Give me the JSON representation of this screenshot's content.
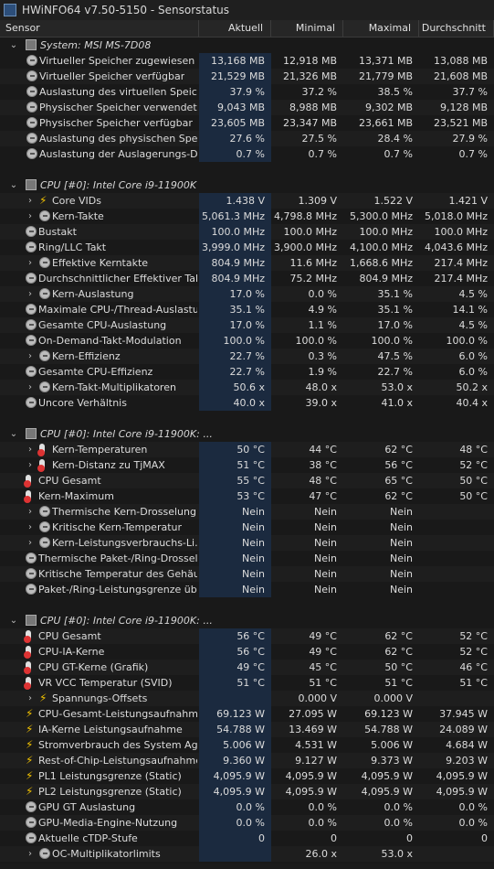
{
  "window": {
    "title": "HWiNFO64 v7.50-5150 - Sensorstatus"
  },
  "columns": {
    "sensor": "Sensor",
    "current": "Aktuell",
    "min": "Minimal",
    "max": "Maximal",
    "avg": "Durchschnitt"
  },
  "rows": [
    {
      "kind": "group",
      "label": "System: MSI MS-7D08",
      "expander": "⌄"
    },
    {
      "kind": "item",
      "label": "Virtueller Speicher zugewiesen",
      "icon": "gauge-icon",
      "indent": 1,
      "v": [
        "13,168 MB",
        "12,918 MB",
        "13,371 MB",
        "13,088 MB"
      ]
    },
    {
      "kind": "item",
      "label": "Virtueller Speicher verfügbar",
      "icon": "gauge-icon",
      "indent": 1,
      "v": [
        "21,529 MB",
        "21,326 MB",
        "21,779 MB",
        "21,608 MB"
      ]
    },
    {
      "kind": "item",
      "label": "Auslastung des virtuellen Speichers",
      "icon": "gauge-icon",
      "indent": 1,
      "v": [
        "37.9 %",
        "37.2 %",
        "38.5 %",
        "37.7 %"
      ]
    },
    {
      "kind": "item",
      "label": "Physischer Speicher verwendet",
      "icon": "gauge-icon",
      "indent": 1,
      "v": [
        "9,043 MB",
        "8,988 MB",
        "9,302 MB",
        "9,128 MB"
      ]
    },
    {
      "kind": "item",
      "label": "Physischer Speicher verfügbar",
      "icon": "gauge-icon",
      "indent": 1,
      "v": [
        "23,605 MB",
        "23,347 MB",
        "23,661 MB",
        "23,521 MB"
      ]
    },
    {
      "kind": "item",
      "label": "Auslastung des physischen Speic...",
      "icon": "gauge-icon",
      "indent": 1,
      "v": [
        "27.6 %",
        "27.5 %",
        "28.4 %",
        "27.9 %"
      ]
    },
    {
      "kind": "item",
      "label": "Auslastung der Auslagerungs-Datei",
      "icon": "gauge-icon",
      "indent": 1,
      "v": [
        "0.7 %",
        "0.7 %",
        "0.7 %",
        "0.7 %"
      ]
    },
    {
      "kind": "sep"
    },
    {
      "kind": "group",
      "label": "CPU [#0]: Intel Core i9-11900K",
      "expander": "⌄"
    },
    {
      "kind": "item",
      "label": "Core VIDs",
      "icon": "bolt-icon",
      "indent": 1,
      "exp": "›",
      "v": [
        "1.438 V",
        "1.309 V",
        "1.522 V",
        "1.421 V"
      ]
    },
    {
      "kind": "item",
      "label": "Kern-Takte",
      "icon": "gauge-icon",
      "indent": 1,
      "exp": "›",
      "v": [
        "5,061.3 MHz",
        "4,798.8 MHz",
        "5,300.0 MHz",
        "5,018.0 MHz"
      ]
    },
    {
      "kind": "item",
      "label": "Bustakt",
      "icon": "gauge-icon",
      "indent": 0,
      "v": [
        "100.0 MHz",
        "100.0 MHz",
        "100.0 MHz",
        "100.0 MHz"
      ]
    },
    {
      "kind": "item",
      "label": "Ring/LLC Takt",
      "icon": "gauge-icon",
      "indent": 0,
      "v": [
        "3,999.0 MHz",
        "3,900.0 MHz",
        "4,100.0 MHz",
        "4,043.6 MHz"
      ]
    },
    {
      "kind": "item",
      "label": "Effektive Kerntakte",
      "icon": "gauge-icon",
      "indent": 1,
      "exp": "›",
      "v": [
        "804.9 MHz",
        "11.6 MHz",
        "1,668.6 MHz",
        "217.4 MHz"
      ]
    },
    {
      "kind": "item",
      "label": "Durchschnittlicher Effektiver Takt",
      "icon": "gauge-icon",
      "indent": 0,
      "v": [
        "804.9 MHz",
        "75.2 MHz",
        "804.9 MHz",
        "217.4 MHz"
      ]
    },
    {
      "kind": "item",
      "label": "Kern-Auslastung",
      "icon": "gauge-icon",
      "indent": 1,
      "exp": "›",
      "v": [
        "17.0 %",
        "0.0 %",
        "35.1 %",
        "4.5 %"
      ]
    },
    {
      "kind": "item",
      "label": "Maximale CPU-/Thread-Auslastung",
      "icon": "gauge-icon",
      "indent": 0,
      "v": [
        "35.1 %",
        "4.9 %",
        "35.1 %",
        "14.1 %"
      ]
    },
    {
      "kind": "item",
      "label": "Gesamte CPU-Auslastung",
      "icon": "gauge-icon",
      "indent": 0,
      "v": [
        "17.0 %",
        "1.1 %",
        "17.0 %",
        "4.5 %"
      ]
    },
    {
      "kind": "item",
      "label": "On-Demand-Takt-Modulation",
      "icon": "gauge-icon",
      "indent": 0,
      "v": [
        "100.0 %",
        "100.0 %",
        "100.0 %",
        "100.0 %"
      ]
    },
    {
      "kind": "item",
      "label": "Kern-Effizienz",
      "icon": "gauge-icon",
      "indent": 1,
      "exp": "›",
      "v": [
        "22.7 %",
        "0.3 %",
        "47.5 %",
        "6.0 %"
      ]
    },
    {
      "kind": "item",
      "label": "Gesamte CPU-Effizienz",
      "icon": "gauge-icon",
      "indent": 0,
      "v": [
        "22.7 %",
        "1.9 %",
        "22.7 %",
        "6.0 %"
      ]
    },
    {
      "kind": "item",
      "label": "Kern-Takt-Multiplikatoren",
      "icon": "gauge-icon",
      "indent": 1,
      "exp": "›",
      "v": [
        "50.6 x",
        "48.0 x",
        "53.0 x",
        "50.2 x"
      ]
    },
    {
      "kind": "item",
      "label": "Uncore Verhältnis",
      "icon": "gauge-icon",
      "indent": 0,
      "v": [
        "40.0 x",
        "39.0 x",
        "41.0 x",
        "40.4 x"
      ]
    },
    {
      "kind": "sep"
    },
    {
      "kind": "group",
      "label": "CPU [#0]: Intel Core i9-11900K: ...",
      "expander": "⌄"
    },
    {
      "kind": "item",
      "label": "Kern-Temperaturen",
      "icon": "thermometer-icon",
      "indent": 1,
      "exp": "›",
      "v": [
        "50 °C",
        "44 °C",
        "62 °C",
        "48 °C"
      ]
    },
    {
      "kind": "item",
      "label": "Kern-Distanz zu TjMAX",
      "icon": "thermometer-icon",
      "indent": 1,
      "exp": "›",
      "v": [
        "51 °C",
        "38 °C",
        "56 °C",
        "52 °C"
      ]
    },
    {
      "kind": "item",
      "label": "CPU Gesamt",
      "icon": "thermometer-icon",
      "indent": 0,
      "v": [
        "55 °C",
        "48 °C",
        "65 °C",
        "50 °C"
      ]
    },
    {
      "kind": "item",
      "label": "Kern-Maximum",
      "icon": "thermometer-icon",
      "indent": 0,
      "v": [
        "53 °C",
        "47 °C",
        "62 °C",
        "50 °C"
      ]
    },
    {
      "kind": "item",
      "label": "Thermische Kern-Drosselung",
      "icon": "gauge-icon",
      "indent": 1,
      "exp": "›",
      "v": [
        "Nein",
        "Nein",
        "Nein",
        ""
      ]
    },
    {
      "kind": "item",
      "label": "Kritische Kern-Temperatur",
      "icon": "gauge-icon",
      "indent": 1,
      "exp": "›",
      "v": [
        "Nein",
        "Nein",
        "Nein",
        ""
      ]
    },
    {
      "kind": "item",
      "label": "Kern-Leistungsverbrauchs-Li...",
      "icon": "gauge-icon",
      "indent": 1,
      "exp": "›",
      "v": [
        "Nein",
        "Nein",
        "Nein",
        ""
      ]
    },
    {
      "kind": "item",
      "label": "Thermische Paket-/Ring-Drosselung",
      "icon": "gauge-icon",
      "indent": 0,
      "v": [
        "Nein",
        "Nein",
        "Nein",
        ""
      ]
    },
    {
      "kind": "item",
      "label": "Kritische Temperatur des Gehäus...",
      "icon": "gauge-icon",
      "indent": 0,
      "v": [
        "Nein",
        "Nein",
        "Nein",
        ""
      ]
    },
    {
      "kind": "item",
      "label": "Paket-/Ring-Leistungsgrenze übe...",
      "icon": "gauge-icon",
      "indent": 0,
      "v": [
        "Nein",
        "Nein",
        "Nein",
        ""
      ]
    },
    {
      "kind": "sep"
    },
    {
      "kind": "group",
      "label": "CPU [#0]: Intel Core i9-11900K: ...",
      "expander": "⌄"
    },
    {
      "kind": "item",
      "label": "CPU Gesamt",
      "icon": "thermometer-icon",
      "indent": 0,
      "v": [
        "56 °C",
        "49 °C",
        "62 °C",
        "52 °C"
      ]
    },
    {
      "kind": "item",
      "label": "CPU-IA-Kerne",
      "icon": "thermometer-icon",
      "indent": 0,
      "v": [
        "56 °C",
        "49 °C",
        "62 °C",
        "52 °C"
      ]
    },
    {
      "kind": "item",
      "label": "CPU GT-Kerne (Grafik)",
      "icon": "thermometer-icon",
      "indent": 0,
      "v": [
        "49 °C",
        "45 °C",
        "50 °C",
        "46 °C"
      ]
    },
    {
      "kind": "item",
      "label": "VR VCC Temperatur (SVID)",
      "icon": "thermometer-icon",
      "indent": 0,
      "v": [
        "51 °C",
        "51 °C",
        "51 °C",
        "51 °C"
      ]
    },
    {
      "kind": "item",
      "label": "Spannungs-Offsets",
      "icon": "bolt-icon",
      "indent": 1,
      "exp": "›",
      "v": [
        "",
        "0.000 V",
        "0.000 V",
        ""
      ]
    },
    {
      "kind": "item",
      "label": "CPU-Gesamt-Leistungsaufnahme",
      "icon": "bolt-icon",
      "indent": 0,
      "v": [
        "69.123 W",
        "27.095 W",
        "69.123 W",
        "37.945 W"
      ]
    },
    {
      "kind": "item",
      "label": "IA-Kerne Leistungsaufnahme",
      "icon": "bolt-icon",
      "indent": 0,
      "v": [
        "54.788 W",
        "13.469 W",
        "54.788 W",
        "24.089 W"
      ]
    },
    {
      "kind": "item",
      "label": "Stromverbrauch des System Agent",
      "icon": "bolt-icon",
      "indent": 0,
      "v": [
        "5.006 W",
        "4.531 W",
        "5.006 W",
        "4.684 W"
      ]
    },
    {
      "kind": "item",
      "label": "Rest-of-Chip-Leistungsaufnahme",
      "icon": "bolt-icon",
      "indent": 0,
      "v": [
        "9.360 W",
        "9.127 W",
        "9.373 W",
        "9.203 W"
      ]
    },
    {
      "kind": "item",
      "label": "PL1 Leistungsgrenze (Static)",
      "icon": "bolt-icon",
      "indent": 0,
      "v": [
        "4,095.9 W",
        "4,095.9 W",
        "4,095.9 W",
        "4,095.9 W"
      ]
    },
    {
      "kind": "item",
      "label": "PL2 Leistungsgrenze (Static)",
      "icon": "bolt-icon",
      "indent": 0,
      "v": [
        "4,095.9 W",
        "4,095.9 W",
        "4,095.9 W",
        "4,095.9 W"
      ]
    },
    {
      "kind": "item",
      "label": "GPU GT Auslastung",
      "icon": "gauge-icon",
      "indent": 0,
      "v": [
        "0.0 %",
        "0.0 %",
        "0.0 %",
        "0.0 %"
      ]
    },
    {
      "kind": "item",
      "label": "GPU-Media-Engine-Nutzung",
      "icon": "gauge-icon",
      "indent": 0,
      "v": [
        "0.0 %",
        "0.0 %",
        "0.0 %",
        "0.0 %"
      ]
    },
    {
      "kind": "item",
      "label": "Aktuelle cTDP-Stufe",
      "icon": "gauge-icon",
      "indent": 0,
      "v": [
        "0",
        "0",
        "0",
        "0"
      ]
    },
    {
      "kind": "item",
      "label": "OC-Multiplikatorlimits",
      "icon": "gauge-icon",
      "indent": 1,
      "exp": "›",
      "v": [
        "",
        "26.0 x",
        "53.0 x",
        ""
      ]
    }
  ]
}
